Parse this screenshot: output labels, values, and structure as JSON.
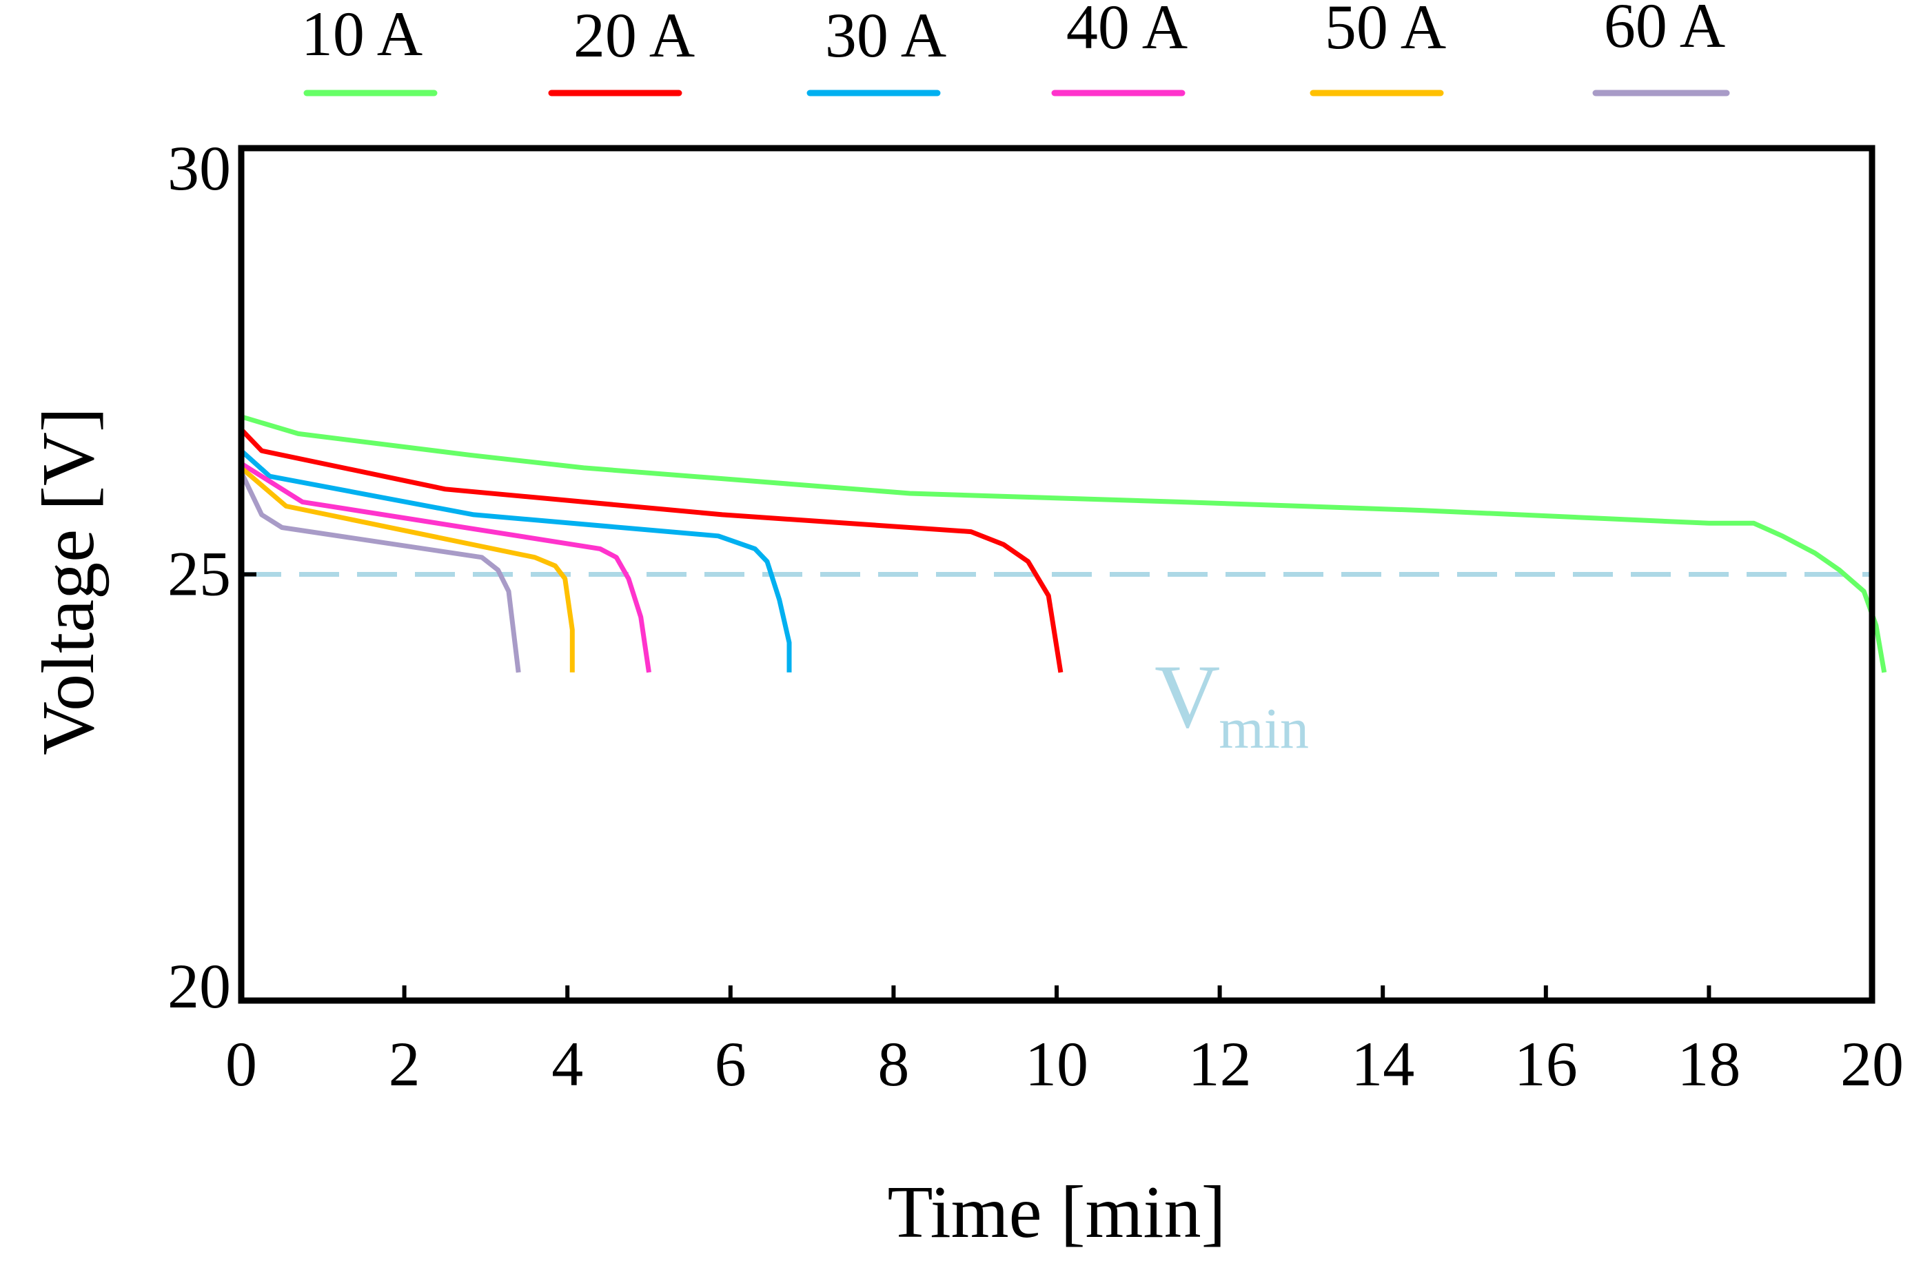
{
  "chart_data": {
    "type": "line",
    "title": "",
    "xlabel": "Time [min]",
    "ylabel": "Voltage [V]",
    "xlim": [
      0,
      20
    ],
    "ylim": [
      20,
      30
    ],
    "xticks": [
      0,
      2,
      4,
      6,
      8,
      10,
      12,
      14,
      16,
      18,
      20
    ],
    "xtick_labels": [
      "0",
      "2",
      "4",
      "6",
      "8",
      "10",
      "12",
      "14",
      "16",
      "18",
      "20"
    ],
    "yticks": [
      20,
      25,
      30
    ],
    "ytick_labels": [
      "20",
      "25",
      "30"
    ],
    "grid": false,
    "legend_position": "top",
    "reference_line": {
      "y": 25,
      "label": "V",
      "label_sub": "min",
      "color": "#add8e6",
      "style": "dashed"
    },
    "series": [
      {
        "name": "10 A",
        "color": "#66ff66",
        "x": [
          0,
          0.7,
          2.8,
          4.2,
          8.2,
          11.5,
          14.5,
          18.0,
          18.55,
          18.9,
          19.3,
          19.6,
          19.9,
          20.05,
          20.15
        ],
        "y": [
          26.85,
          26.65,
          26.4,
          26.25,
          25.95,
          25.85,
          25.75,
          25.6,
          25.6,
          25.45,
          25.25,
          25.05,
          24.8,
          24.4,
          23.85
        ]
      },
      {
        "name": "20 A",
        "color": "#ff0000",
        "x": [
          0,
          0.25,
          2.5,
          5.9,
          8.95,
          9.35,
          9.65,
          9.9,
          10.05
        ],
        "y": [
          26.7,
          26.45,
          26.0,
          25.7,
          25.5,
          25.35,
          25.15,
          24.75,
          23.85
        ]
      },
      {
        "name": "30 A",
        "color": "#00b0f0",
        "x": [
          0,
          0.35,
          2.85,
          5.85,
          6.3,
          6.45,
          6.6,
          6.72,
          6.72
        ],
        "y": [
          26.45,
          26.15,
          25.7,
          25.45,
          25.3,
          25.15,
          24.7,
          24.2,
          23.85
        ]
      },
      {
        "name": "40 A",
        "color": "#ff33cc",
        "x": [
          0,
          0.75,
          4.4,
          4.6,
          4.75,
          4.9,
          5.0
        ],
        "y": [
          26.3,
          25.85,
          25.3,
          25.2,
          24.95,
          24.5,
          23.85
        ]
      },
      {
        "name": "50 A",
        "color": "#ffc000",
        "x": [
          0,
          0.55,
          3.6,
          3.85,
          3.97,
          4.06,
          4.06
        ],
        "y": [
          26.25,
          25.8,
          25.2,
          25.1,
          24.95,
          24.35,
          23.85
        ]
      },
      {
        "name": "60 A",
        "color": "#a89bc7",
        "x": [
          0,
          0.25,
          0.5,
          2.95,
          3.15,
          3.28,
          3.4
        ],
        "y": [
          26.2,
          25.7,
          25.55,
          25.2,
          25.05,
          24.8,
          23.85
        ]
      }
    ]
  }
}
